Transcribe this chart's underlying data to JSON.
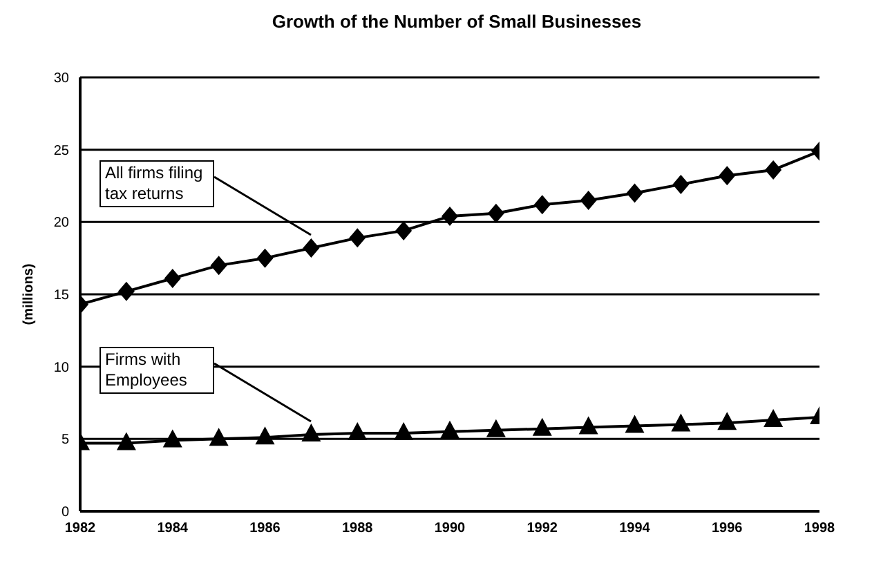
{
  "chart_data": {
    "type": "line",
    "title": "Growth of the Number of Small Businesses",
    "ylabel": "(millions)",
    "x": [
      1982,
      1983,
      1984,
      1985,
      1986,
      1987,
      1988,
      1989,
      1990,
      1991,
      1992,
      1993,
      1994,
      1995,
      1996,
      1997,
      1998
    ],
    "series": [
      {
        "name": "All firms filing tax returns",
        "color": "#000000",
        "marker": "diamond",
        "values": [
          14.3,
          15.2,
          16.1,
          17.0,
          17.5,
          18.2,
          18.9,
          19.4,
          20.4,
          20.6,
          21.2,
          21.5,
          22.0,
          22.6,
          23.2,
          23.6,
          24.9
        ]
      },
      {
        "name": "Firms with Employees",
        "color": "#000000",
        "marker": "triangle",
        "values": [
          4.7,
          4.7,
          4.9,
          5.0,
          5.1,
          5.3,
          5.4,
          5.4,
          5.5,
          5.6,
          5.7,
          5.8,
          5.9,
          6.0,
          6.1,
          6.3,
          6.5
        ]
      }
    ],
    "xlim": [
      1982,
      1998
    ],
    "xticks": [
      1982,
      1984,
      1986,
      1988,
      1990,
      1992,
      1994,
      1996,
      1998
    ],
    "ylim": [
      0,
      30
    ],
    "yticks": [
      0,
      5,
      10,
      15,
      20,
      25,
      30
    ],
    "grid": "y"
  }
}
